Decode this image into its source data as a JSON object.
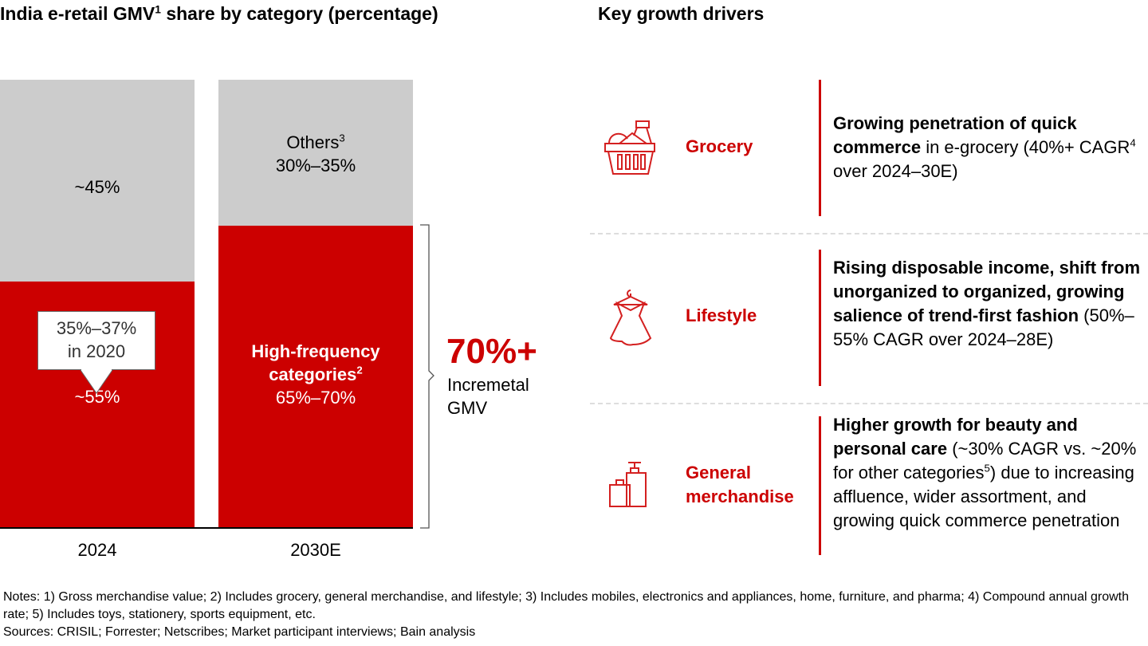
{
  "left_title": {
    "main": "India e-retail GMV",
    "sup": "1",
    "rest": " share by category (percentage)"
  },
  "right_title": "Key growth drivers",
  "chart_data": {
    "type": "bar",
    "stacked": true,
    "categories": [
      "2024",
      "2030E"
    ],
    "series": [
      {
        "name": "High-frequency categories",
        "values": [
          55,
          67.5
        ],
        "labels": [
          "~55%",
          "65%–70%"
        ],
        "color": "#cc0000"
      },
      {
        "name": "Others",
        "values": [
          45,
          32.5
        ],
        "labels": [
          "~45%",
          "30%–35%"
        ],
        "color": "#cccccc"
      }
    ],
    "ylim": [
      0,
      100
    ],
    "segment_titles": {
      "others": "Others",
      "others_sup": "3",
      "hf": "High-frequency categories",
      "hf_sup": "2"
    },
    "callout": {
      "line1": "35%–37%",
      "line2": "in 2020"
    },
    "bracket": {
      "value": "70%+",
      "line1": "Incremetal",
      "line2": "GMV"
    }
  },
  "drivers": [
    {
      "icon": "grocery-basket-icon",
      "category": "Grocery",
      "bold": "Growing penetration of quick commerce",
      "rest1": " in e-grocery (40%+ CAGR",
      "sup": "4",
      "rest2": " over 2024–30E)"
    },
    {
      "icon": "dress-hanger-icon",
      "category": "Lifestyle",
      "bold": "Rising disposable income, shift from unorganized to organized, growing salience of trend-first fashion",
      "rest1": " (50%–55% CAGR over 2024–28E)"
    },
    {
      "icon": "cosmetics-bottles-icon",
      "category": "General merchandise",
      "bold": "Higher growth for beauty and personal care",
      "rest1": " (~30% CAGR vs. ~20% for other categories",
      "sup": "5",
      "rest2": ") due to increasing affluence, wider assortment, and growing quick commerce penetration"
    }
  ],
  "notes": "Notes: 1) Gross merchandise value; 2) Includes grocery, general merchandise, and lifestyle; 3) Includes mobiles, electronics and appliances, home, furniture, and pharma; 4) Compound annual growth rate; 5) Includes toys, stationery, sports equipment, etc.",
  "sources": "Sources: CRISIL; Forrester; Netscribes; Market participant interviews; Bain analysis"
}
